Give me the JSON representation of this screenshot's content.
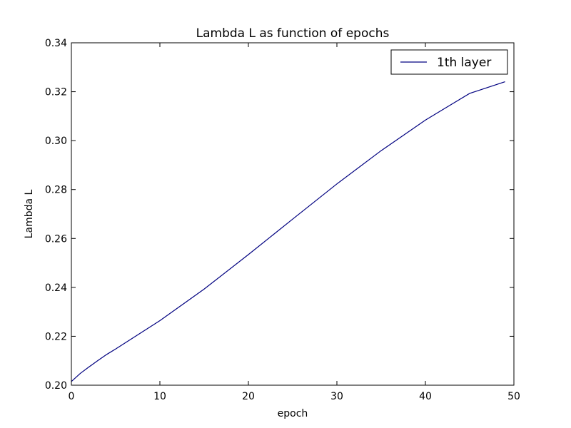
{
  "chart_data": {
    "type": "line",
    "title": "Lambda L as function of epochs",
    "xlabel": "epoch",
    "ylabel": "Lambda L",
    "xlim": [
      0,
      50
    ],
    "ylim": [
      0.2,
      0.34
    ],
    "x_ticks": [
      "0",
      "10",
      "20",
      "30",
      "40",
      "50"
    ],
    "y_ticks": [
      "0.20",
      "0.22",
      "0.24",
      "0.26",
      "0.28",
      "0.30",
      "0.32",
      "0.34"
    ],
    "grid": false,
    "legend_position": "top-right",
    "series": [
      {
        "name": "1th layer",
        "color": "#000080",
        "x": [
          0,
          1,
          2,
          3,
          4,
          5,
          10,
          15,
          20,
          25,
          30,
          35,
          40,
          45,
          49
        ],
        "y": [
          0.2015,
          0.2048,
          0.2075,
          0.2101,
          0.2126,
          0.2148,
          0.2264,
          0.2393,
          0.2534,
          0.2679,
          0.2823,
          0.2959,
          0.3084,
          0.3193,
          0.3241
        ]
      }
    ]
  }
}
